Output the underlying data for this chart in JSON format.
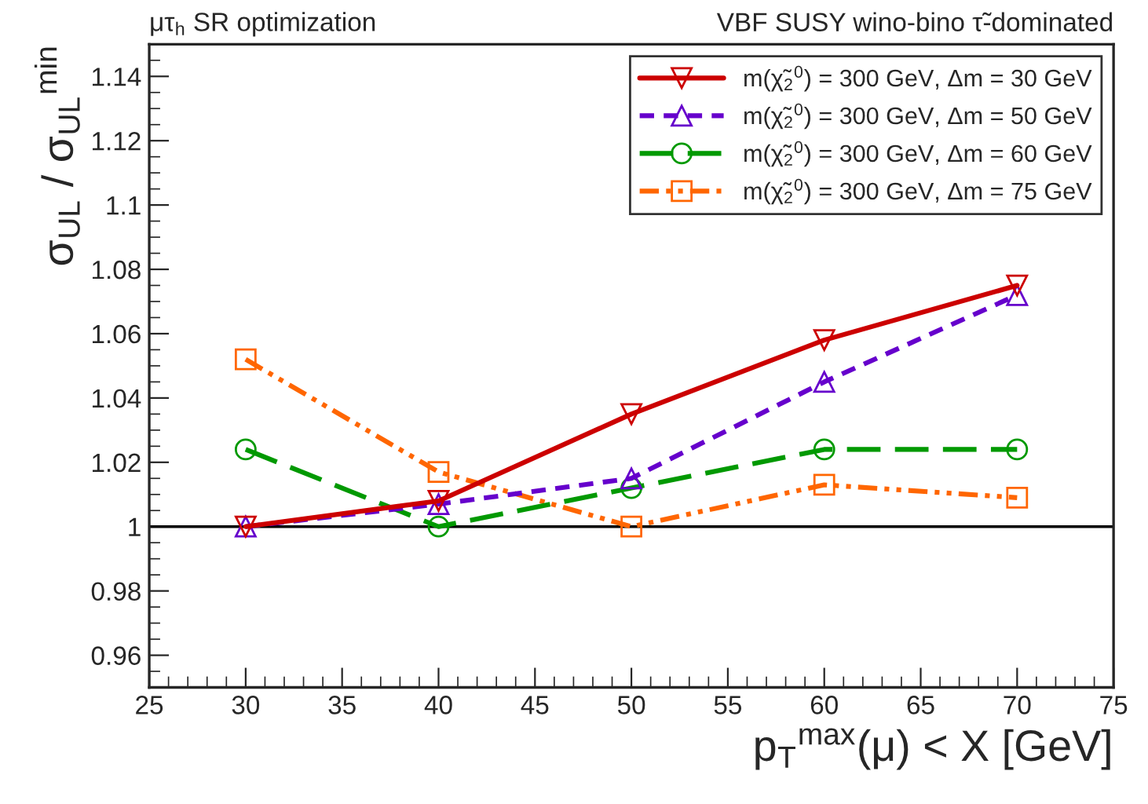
{
  "chart_data": {
    "type": "line",
    "title": "μτ$_{h}$ SR optimization",
    "subtitle": "VBF SUSY wino-bino τ̃-dominated",
    "xlabel": "p$_{T}$$^{max}$(μ) < X [GeV]",
    "ylabel": "σ$_{UL}$ / σ$_{UL}$$^{min}$",
    "x": [
      30,
      40,
      50,
      60,
      70
    ],
    "series": [
      {
        "name": "m(χ̃$_{2}$$^{0}$) = 300 GeV, Δm = 30 GeV",
        "color": "#cc0000",
        "marker": "triangle_down",
        "line_style": "solid",
        "values": [
          1.0,
          1.008,
          1.035,
          1.058,
          1.075
        ]
      },
      {
        "name": "m(χ̃$_{2}$$^{0}$) = 300 GeV, Δm = 50 GeV",
        "color": "#6600cc",
        "marker": "triangle",
        "line_style": "dashed",
        "values": [
          1.0,
          1.007,
          1.015,
          1.045,
          1.072
        ]
      },
      {
        "name": "m(χ̃$_{2}$$^{0}$) = 300 GeV, Δm = 60 GeV",
        "color": "#009900",
        "marker": "circle",
        "line_style": "long_dashed",
        "values": [
          1.024,
          1.0,
          1.012,
          1.024,
          1.024
        ]
      },
      {
        "name": "m(χ̃$_{2}$$^{0}$) = 300 GeV, Δm = 75 GeV",
        "color": "#ff6600",
        "marker": "square",
        "line_style": "dash_dot_dot",
        "values": [
          1.052,
          1.017,
          1.0,
          1.013,
          1.009
        ]
      }
    ],
    "xlim": [
      25,
      75
    ],
    "xticks": [
      25,
      30,
      35,
      40,
      45,
      50,
      55,
      60,
      65,
      70,
      75
    ],
    "ylim": [
      0.95,
      1.15
    ],
    "yticks": [
      0.96,
      0.98,
      1,
      1.02,
      1.04,
      1.06,
      1.08,
      1.1,
      1.12,
      1.14
    ],
    "ref_lines": [
      {
        "axis": "y",
        "value": 1,
        "color": "#000000",
        "line_style": "solid"
      }
    ],
    "grid": false,
    "legend": "top right"
  }
}
